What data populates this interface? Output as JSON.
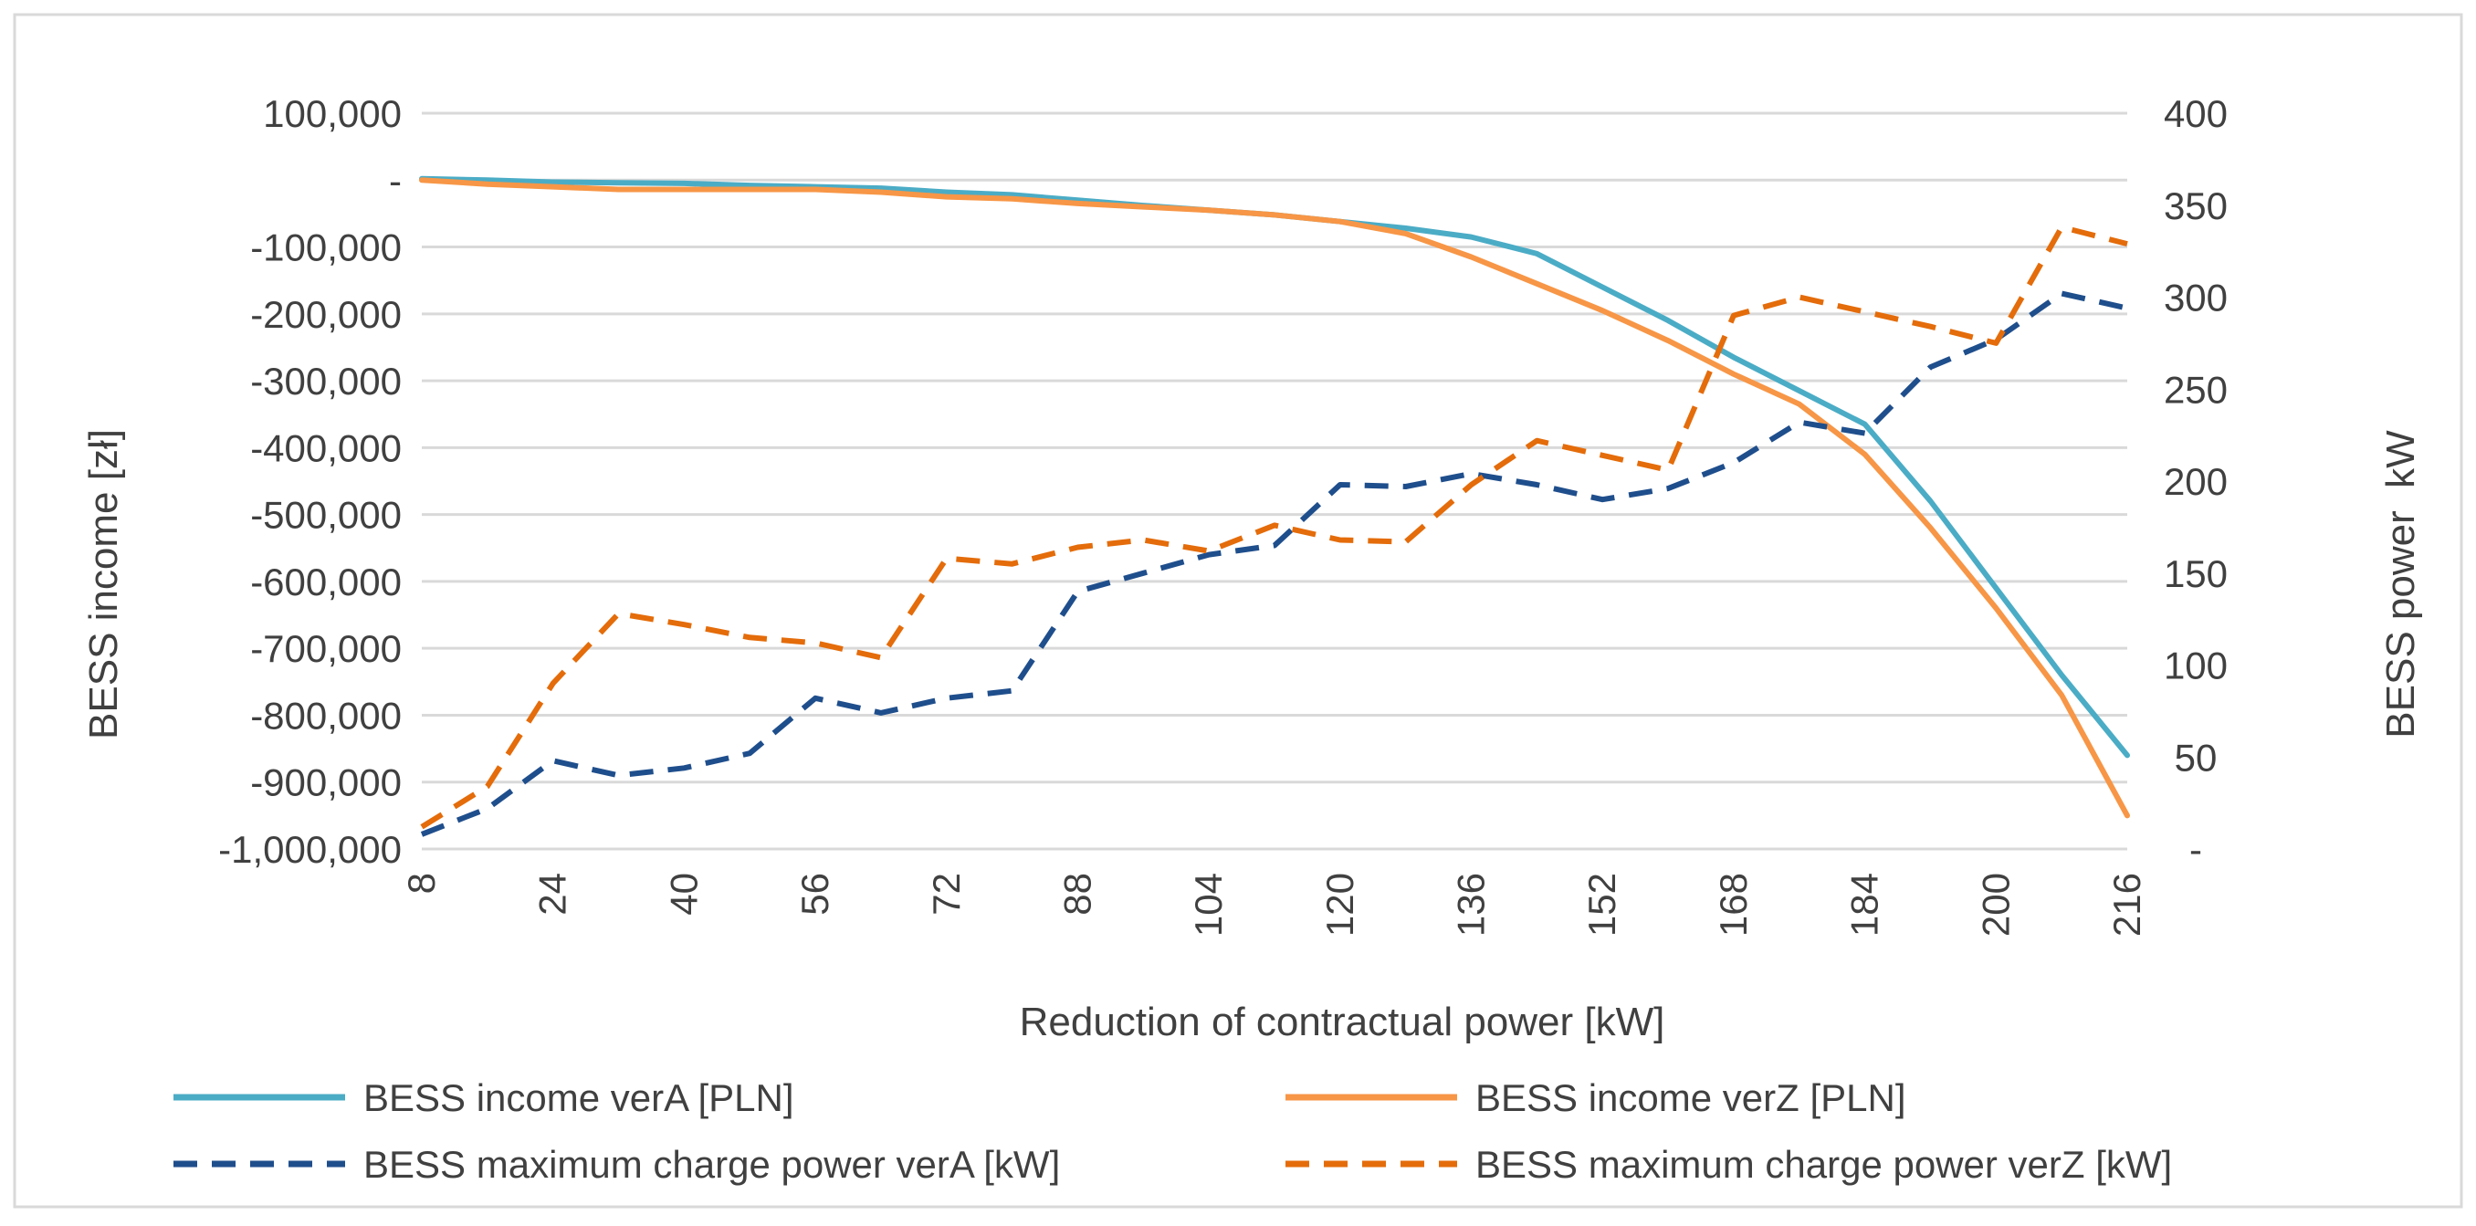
{
  "chart_data": {
    "type": "line",
    "xlabel": "Reduction of contractual power [kW]",
    "ylabel": "BESS income [zł]",
    "y2label": "BESS power  kW",
    "x": [
      8,
      16,
      24,
      32,
      40,
      48,
      56,
      64,
      72,
      80,
      88,
      96,
      104,
      112,
      120,
      128,
      136,
      144,
      152,
      160,
      168,
      176,
      184,
      192,
      200,
      208,
      216
    ],
    "x_tick_labels": [
      "8",
      "24",
      "40",
      "56",
      "72",
      "88",
      "104",
      "120",
      "136",
      "152",
      "168",
      "184",
      "200",
      "216"
    ],
    "ylim": [
      -1000000,
      100000
    ],
    "y_tick_labels": [
      "100,000",
      "-",
      "-100,000",
      "-200,000",
      "-300,000",
      "-400,000",
      "-500,000",
      "-600,000",
      "-700,000",
      "-800,000",
      "-900,000",
      "-1,000,000"
    ],
    "y2lim": [
      0,
      400
    ],
    "y2_tick_labels": [
      "400",
      "350",
      "300",
      "250",
      "200",
      "150",
      "100",
      "50",
      "-"
    ],
    "grid": true,
    "legend_position": "bottom",
    "series": [
      {
        "name": "BESS income verA [PLN]",
        "axis": "left",
        "style": "solid",
        "color": "#4bacc6",
        "values": [
          2000,
          0,
          -3000,
          -4000,
          -5000,
          -8000,
          -10000,
          -12000,
          -18000,
          -22000,
          -30000,
          -38000,
          -45000,
          -52000,
          -62000,
          -72000,
          -85000,
          -110000,
          -160000,
          -210000,
          -265000,
          -315000,
          -365000,
          -480000,
          -610000,
          -740000,
          -860000
        ]
      },
      {
        "name": "BESS income verZ [PLN]",
        "axis": "left",
        "style": "solid",
        "color": "#f79646",
        "values": [
          0,
          -6000,
          -10000,
          -14000,
          -14000,
          -14000,
          -14000,
          -18000,
          -25000,
          -28000,
          -35000,
          -40000,
          -45000,
          -52000,
          -62000,
          -80000,
          -115000,
          -155000,
          -195000,
          -240000,
          -290000,
          -335000,
          -410000,
          -520000,
          -640000,
          -770000,
          -950000
        ]
      },
      {
        "name": "BESS maximum charge power verA [kW]",
        "axis": "right",
        "style": "dashed",
        "color": "#1f4e8c",
        "values": [
          8,
          22,
          48,
          40,
          44,
          52,
          82,
          74,
          82,
          86,
          140,
          150,
          160,
          165,
          198,
          197,
          204,
          198,
          190,
          196,
          210,
          232,
          226,
          262,
          277,
          302,
          294
        ]
      },
      {
        "name": "BESS maximum charge power verZ [kW]",
        "axis": "right",
        "style": "dashed",
        "color": "#e46c0a",
        "values": [
          12,
          34,
          90,
          128,
          122,
          115,
          112,
          104,
          158,
          155,
          164,
          168,
          162,
          176,
          168,
          167,
          198,
          222,
          214,
          206,
          290,
          300,
          292,
          284,
          275,
          338,
          329
        ]
      }
    ]
  }
}
